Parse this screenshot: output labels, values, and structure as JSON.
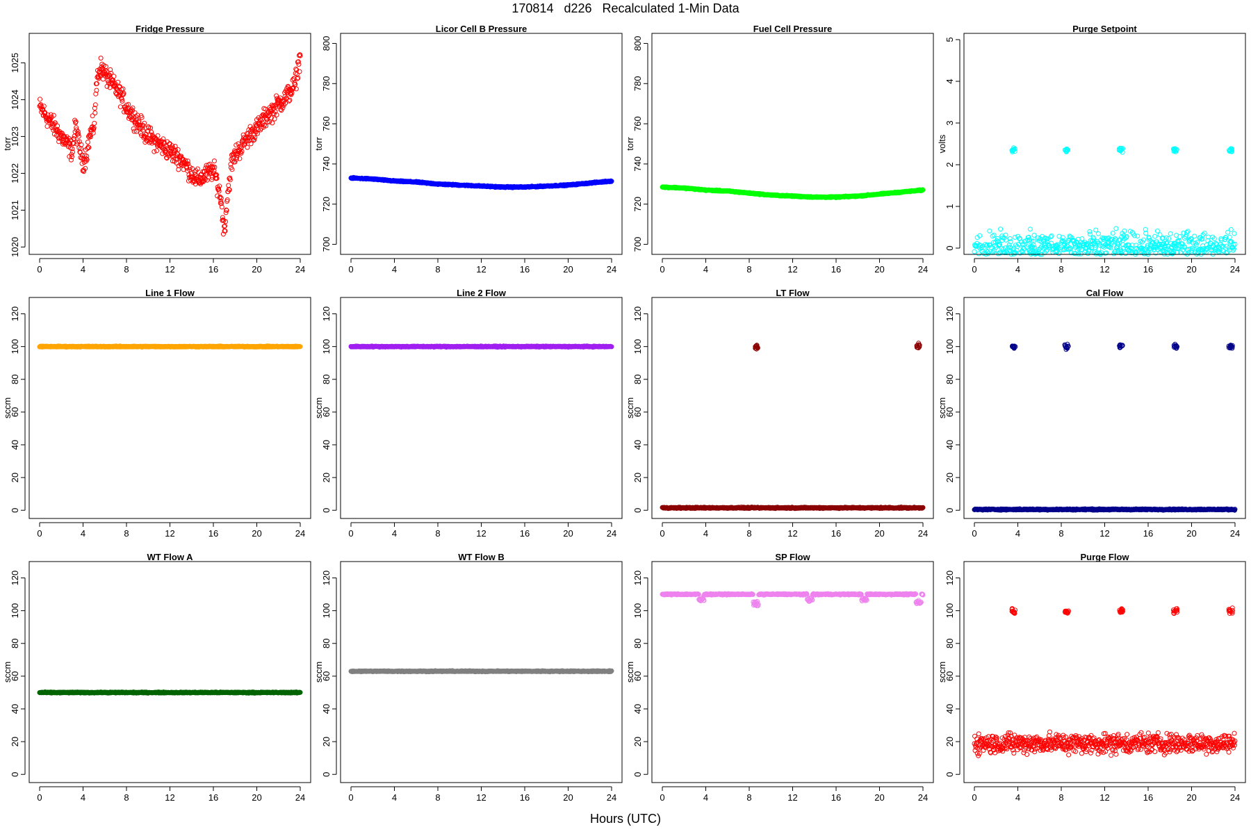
{
  "title": "170814   d226   Recalculated 1-Min Data",
  "x_label": "Hours (UTC)",
  "chart_data": [
    {
      "type": "scatter",
      "title": "Fridge Pressure",
      "ylabel": "torr",
      "xlim": [
        0,
        24
      ],
      "ylim": [
        1019.8,
        1025.8
      ],
      "x_ticks": [
        0,
        4,
        8,
        12,
        16,
        20,
        24
      ],
      "y_ticks": [
        1020,
        1021,
        1022,
        1023,
        1024,
        1025
      ],
      "color": "#ff0000",
      "marker": "open-circle",
      "series": [
        {
          "x": [
            0,
            0.5,
            1,
            1.5,
            2,
            2.5,
            3,
            3.3,
            3.6,
            4,
            4.3,
            4.6,
            5,
            5.3,
            5.6,
            6,
            6.5,
            7,
            7.5,
            8,
            8.5,
            9,
            9.5,
            10,
            10.5,
            11,
            11.5,
            12,
            12.5,
            13,
            13.5,
            14,
            14.5,
            15,
            15.5,
            16,
            16.3,
            16.7,
            17,
            17.3,
            17.7,
            18,
            18.5,
            19,
            19.5,
            20,
            20.5,
            21,
            21.5,
            22,
            22.5,
            23,
            23.5,
            24
          ],
          "y": [
            1023.8,
            1023.6,
            1023.4,
            1023.2,
            1023.0,
            1022.8,
            1022.6,
            1023.3,
            1022.8,
            1022.3,
            1022.5,
            1023.0,
            1023.3,
            1024.6,
            1024.9,
            1024.7,
            1024.5,
            1024.3,
            1024.1,
            1023.8,
            1023.6,
            1023.4,
            1023.2,
            1023.0,
            1022.9,
            1022.8,
            1022.7,
            1022.6,
            1022.5,
            1022.4,
            1022.2,
            1022.0,
            1021.8,
            1021.9,
            1022.0,
            1022.1,
            1021.8,
            1021.3,
            1020.4,
            1021.4,
            1022.3,
            1022.5,
            1022.7,
            1022.9,
            1023.1,
            1023.2,
            1023.4,
            1023.6,
            1023.7,
            1023.9,
            1024.0,
            1024.2,
            1024.4,
            1025.2
          ]
        }
      ]
    },
    {
      "type": "scatter",
      "title": "Licor Cell B Pressure",
      "ylabel": "torr",
      "xlim": [
        0,
        24
      ],
      "ylim": [
        695,
        805
      ],
      "x_ticks": [
        0,
        4,
        8,
        12,
        16,
        20,
        24
      ],
      "y_ticks": [
        700,
        720,
        740,
        760,
        780,
        800
      ],
      "color": "#0000ff",
      "marker": "open-circle",
      "series": [
        {
          "x": [
            0,
            2,
            4,
            6,
            8,
            10,
            12,
            14,
            16,
            18,
            20,
            22,
            24
          ],
          "y": [
            733,
            732.5,
            731.5,
            731,
            730,
            729.5,
            729,
            728.5,
            728.5,
            729,
            729.5,
            730.5,
            731.5
          ]
        }
      ]
    },
    {
      "type": "scatter",
      "title": "Fuel Cell Pressure",
      "ylabel": "torr",
      "xlim": [
        0,
        24
      ],
      "ylim": [
        695,
        805
      ],
      "x_ticks": [
        0,
        4,
        8,
        12,
        16,
        20,
        24
      ],
      "y_ticks": [
        700,
        720,
        740,
        760,
        780,
        800
      ],
      "color": "#00ff00",
      "marker": "open-circle",
      "series": [
        {
          "x": [
            0,
            2,
            4,
            6,
            8,
            10,
            12,
            14,
            16,
            18,
            20,
            22,
            24
          ],
          "y": [
            728.5,
            728,
            727,
            726.5,
            725.5,
            724.5,
            724,
            723.5,
            723.5,
            724,
            725,
            726,
            727
          ]
        }
      ]
    },
    {
      "type": "scatter",
      "title": "Purge Setpoint",
      "ylabel": "volts",
      "xlim": [
        0,
        24
      ],
      "ylim": [
        -0.15,
        5.15
      ],
      "x_ticks": [
        0,
        4,
        8,
        12,
        16,
        20,
        24
      ],
      "y_ticks": [
        0,
        1,
        2,
        3,
        4,
        5
      ],
      "color": "#00ffff",
      "marker": "open-circle",
      "series": [
        {
          "baseline": 0,
          "bursts": [
            {
              "x": 3.6,
              "y": 2.35
            },
            {
              "x": 8.5,
              "y": 2.35
            },
            {
              "x": 13.5,
              "y": 2.35
            },
            {
              "x": 18.5,
              "y": 2.35
            },
            {
              "x": 23.6,
              "y": 2.35
            }
          ]
        }
      ]
    },
    {
      "type": "scatter",
      "title": "Line 1 Flow",
      "ylabel": "sccm",
      "xlim": [
        0,
        24
      ],
      "ylim": [
        -5,
        130
      ],
      "x_ticks": [
        0,
        4,
        8,
        12,
        16,
        20,
        24
      ],
      "y_ticks": [
        0,
        20,
        40,
        60,
        80,
        100,
        120
      ],
      "color": "#ffa500",
      "marker": "open-circle",
      "series": [
        {
          "constant": 100
        }
      ]
    },
    {
      "type": "scatter",
      "title": "Line 2 Flow",
      "ylabel": "sccm",
      "xlim": [
        0,
        24
      ],
      "ylim": [
        -5,
        130
      ],
      "x_ticks": [
        0,
        4,
        8,
        12,
        16,
        20,
        24
      ],
      "y_ticks": [
        0,
        20,
        40,
        60,
        80,
        100,
        120
      ],
      "color": "#a020f0",
      "marker": "open-circle",
      "series": [
        {
          "constant": 100
        }
      ]
    },
    {
      "type": "scatter",
      "title": "LT Flow",
      "ylabel": "sccm",
      "xlim": [
        0,
        24
      ],
      "ylim": [
        -5,
        130
      ],
      "x_ticks": [
        0,
        4,
        8,
        12,
        16,
        20,
        24
      ],
      "y_ticks": [
        0,
        20,
        40,
        60,
        80,
        100,
        120
      ],
      "color": "#8b0000",
      "marker": "open-circle",
      "series": [
        {
          "baseline": 1.5,
          "bursts": [
            {
              "x": 8.7,
              "y": 100
            },
            {
              "x": 23.6,
              "y": 100
            }
          ]
        }
      ]
    },
    {
      "type": "scatter",
      "title": "Cal Flow",
      "ylabel": "sccm",
      "xlim": [
        0,
        24
      ],
      "ylim": [
        -5,
        130
      ],
      "x_ticks": [
        0,
        4,
        8,
        12,
        16,
        20,
        24
      ],
      "y_ticks": [
        0,
        20,
        40,
        60,
        80,
        100,
        120
      ],
      "color": "#00008b",
      "marker": "open-circle",
      "series": [
        {
          "baseline": 0.5,
          "bursts": [
            {
              "x": 3.6,
              "y": 100
            },
            {
              "x": 8.5,
              "y": 100
            },
            {
              "x": 13.5,
              "y": 100
            },
            {
              "x": 18.5,
              "y": 100
            },
            {
              "x": 23.6,
              "y": 100
            }
          ]
        }
      ]
    },
    {
      "type": "scatter",
      "title": "WT Flow A",
      "ylabel": "sccm",
      "xlim": [
        0,
        24
      ],
      "ylim": [
        -5,
        130
      ],
      "x_ticks": [
        0,
        4,
        8,
        12,
        16,
        20,
        24
      ],
      "y_ticks": [
        0,
        20,
        40,
        60,
        80,
        100,
        120
      ],
      "color": "#006400",
      "marker": "open-circle",
      "series": [
        {
          "constant": 50
        }
      ]
    },
    {
      "type": "scatter",
      "title": "WT Flow B",
      "ylabel": "sccm",
      "xlim": [
        0,
        24
      ],
      "ylim": [
        -5,
        130
      ],
      "x_ticks": [
        0,
        4,
        8,
        12,
        16,
        20,
        24
      ],
      "y_ticks": [
        0,
        20,
        40,
        60,
        80,
        100,
        120
      ],
      "color": "#808080",
      "marker": "open-circle",
      "series": [
        {
          "constant": 63
        }
      ]
    },
    {
      "type": "scatter",
      "title": "SP Flow",
      "ylabel": "sccm",
      "xlim": [
        0,
        24
      ],
      "ylim": [
        -5,
        130
      ],
      "x_ticks": [
        0,
        4,
        8,
        12,
        16,
        20,
        24
      ],
      "y_ticks": [
        0,
        20,
        40,
        60,
        80,
        100,
        120
      ],
      "color": "#ee82ee",
      "marker": "open-circle",
      "series": [
        {
          "baseline": 110,
          "dips": [
            {
              "x": 3.6,
              "y": 107
            },
            {
              "x": 8.6,
              "y": 104
            },
            {
              "x": 13.6,
              "y": 107
            },
            {
              "x": 18.6,
              "y": 107
            },
            {
              "x": 23.6,
              "y": 105
            }
          ]
        }
      ]
    },
    {
      "type": "scatter",
      "title": "Purge Flow",
      "ylabel": "sccm",
      "xlim": [
        0,
        24
      ],
      "ylim": [
        -5,
        130
      ],
      "x_ticks": [
        0,
        4,
        8,
        12,
        16,
        20,
        24
      ],
      "y_ticks": [
        0,
        20,
        40,
        60,
        80,
        100,
        120
      ],
      "color": "#ff0000",
      "marker": "open-circle",
      "series": [
        {
          "baseline": 19,
          "noise": 5,
          "bursts": [
            {
              "x": 3.6,
              "y": 100
            },
            {
              "x": 8.5,
              "y": 99
            },
            {
              "x": 13.5,
              "y": 100
            },
            {
              "x": 18.5,
              "y": 100
            },
            {
              "x": 23.6,
              "y": 100
            }
          ]
        }
      ]
    }
  ]
}
